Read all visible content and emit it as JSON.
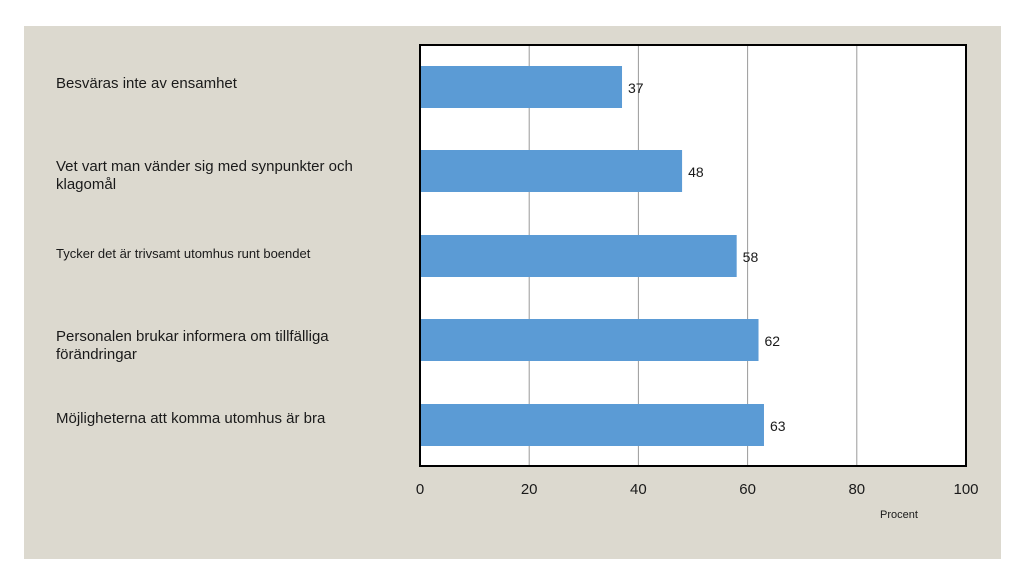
{
  "chart_data": {
    "type": "bar",
    "orientation": "horizontal",
    "categories": [
      "Besväras inte av ensamhet",
      "Vet vart man vänder sig med synpunkter och klagomål",
      "Tycker det är trivsamt utomhus runt boendet",
      "Personalen brukar informera om tillfälliga förändringar",
      "Möjligheterna att komma utomhus är bra"
    ],
    "values": [
      37,
      48,
      58,
      62,
      63
    ],
    "data_labels": [
      "37",
      "48",
      "58",
      "62",
      "63"
    ],
    "xlabel": "Procent",
    "xlim": [
      0,
      100
    ],
    "xticks": [
      "0",
      "20",
      "40",
      "60",
      "80",
      "100"
    ],
    "grid": "vertical",
    "bar_color": "#5b9bd5",
    "background_color": "#dcd9cf"
  }
}
